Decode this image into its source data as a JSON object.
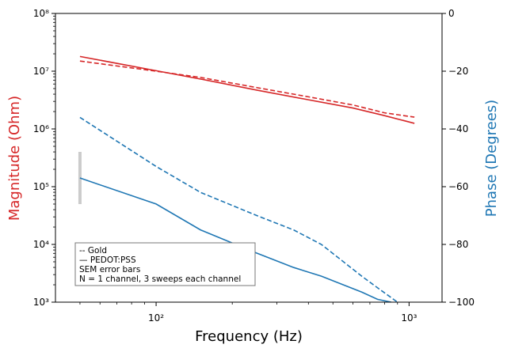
{
  "chart_data": {
    "type": "line",
    "xlabel": "Frequency (Hz)",
    "ylabel_left": "Magnitude (Ohm)",
    "ylabel_right": "Phase (Degrees)",
    "x_scale": "log",
    "y_left_scale": "log",
    "xlim": [
      40,
      1350
    ],
    "ylim_left": [
      1000,
      100000000
    ],
    "ylim_right": [
      -100,
      0
    ],
    "x_ticks": [
      {
        "value": 100,
        "label": "10²"
      },
      {
        "value": 1000,
        "label": "10³"
      }
    ],
    "y_left_ticks": [
      {
        "value": 1000,
        "label": "10³"
      },
      {
        "value": 10000,
        "label": "10⁴"
      },
      {
        "value": 100000,
        "label": "10⁵"
      },
      {
        "value": 1000000,
        "label": "10⁶"
      },
      {
        "value": 10000000,
        "label": "10⁷"
      },
      {
        "value": 100000000,
        "label": "10⁸"
      }
    ],
    "y_right_ticks": [
      {
        "value": 0,
        "label": "0"
      },
      {
        "value": -20,
        "label": "−20"
      },
      {
        "value": -40,
        "label": "−40"
      },
      {
        "value": -60,
        "label": "−60"
      },
      {
        "value": -80,
        "label": "−80"
      },
      {
        "value": -100,
        "label": "−100"
      }
    ],
    "series": [
      {
        "axis": "left",
        "style": "dashed",
        "color": "#d62728",
        "x": [
          50,
          100,
          150,
          250,
          400,
          600,
          800,
          1050
        ],
        "y": [
          15000000,
          10000000,
          7800000,
          5200000,
          3600000,
          2600000,
          1900000,
          1600000
        ]
      },
      {
        "axis": "left",
        "style": "solid",
        "color": "#d62728",
        "x": [
          50,
          100,
          150,
          250,
          400,
          600,
          800,
          1050
        ],
        "y": [
          18000000,
          10200000,
          7300000,
          4700000,
          3200000,
          2300000,
          1700000,
          1250000
        ]
      },
      {
        "axis": "right",
        "style": "dashed",
        "color": "#1f77b4",
        "x": [
          50,
          100,
          150,
          250,
          350,
          450,
          550,
          650,
          750,
          900
        ],
        "y": [
          -36,
          -53,
          -62,
          -70,
          -75,
          -80,
          -86,
          -91,
          -95,
          -100
        ]
      },
      {
        "axis": "right",
        "style": "solid",
        "color": "#1f77b4",
        "x": [
          50,
          100,
          150,
          250,
          350,
          450,
          550,
          650,
          750,
          850
        ],
        "y": [
          -57,
          -66,
          -75,
          -83,
          -88,
          -91,
          -94,
          -96.5,
          -99,
          -100
        ]
      }
    ],
    "error_bars": [
      {
        "axis": "left",
        "x": 50,
        "low": 50000,
        "high": 400000,
        "color": "#cccccc"
      }
    ],
    "legend": {
      "position": "lower-left",
      "lines": [
        "-- Gold",
        "— PEDOT:PSS",
        "SEM error bars",
        "N = 1 channel, 3 sweeps each channel"
      ]
    },
    "colors": {
      "magnitude": "#d62728",
      "phase": "#1f77b4"
    },
    "grid": false
  }
}
